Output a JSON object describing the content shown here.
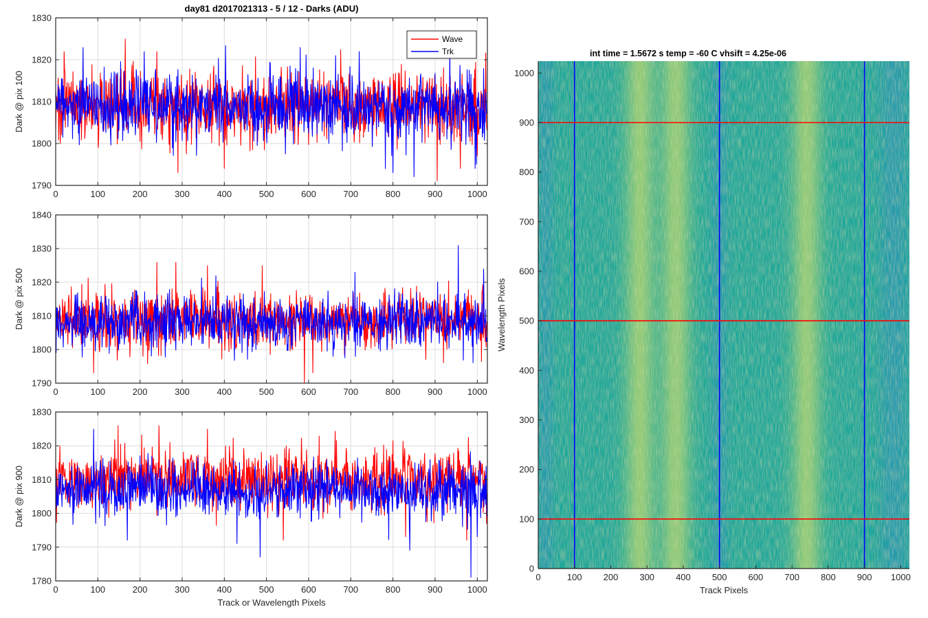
{
  "figure": {
    "suptitle": "day81 d2017021313 - 5 / 12 - Darks (ADU)",
    "colors": {
      "wave": "#ff0000",
      "trk": "#0000ff",
      "axis": "#262626",
      "grid": "#dcdcdc",
      "heat_low": "#2a93b8",
      "heat_mid": "#20a89a",
      "heat_high": "#c7d96c"
    }
  },
  "chart_data": [
    {
      "type": "line",
      "title": "day81 d2017021313 - 5 / 12 - Darks (ADU)",
      "xlabel": "",
      "ylabel": "Dark @ pix 100",
      "xlim": [
        0,
        1024
      ],
      "ylim": [
        1790,
        1830
      ],
      "xticks": [
        0,
        100,
        200,
        300,
        400,
        500,
        600,
        700,
        800,
        900,
        1000
      ],
      "yticks": [
        1790,
        1800,
        1810,
        1820,
        1830
      ],
      "grid": true,
      "legend": {
        "position": "top-right",
        "entries": [
          "Wave",
          "Trk"
        ]
      },
      "series": [
        {
          "name": "Wave",
          "color": "#ff0000",
          "n": 1024,
          "mean": 1809,
          "spread": 4.2,
          "min": 1791,
          "max": 1825,
          "outliers": [
            [
              20,
              1822
            ],
            [
              165,
              1825
            ],
            [
              240,
              1822
            ],
            [
              290,
              1793
            ],
            [
              400,
              1794
            ],
            [
              905,
              1791
            ],
            [
              960,
              1794
            ],
            [
              1000,
              1797
            ]
          ]
        },
        {
          "name": "Trk",
          "color": "#0000ff",
          "n": 1024,
          "mean": 1809,
          "spread": 4.0,
          "min": 1792,
          "max": 1824,
          "outliers": [
            [
              65,
              1823
            ],
            [
              210,
              1822
            ],
            [
              580,
              1823
            ],
            [
              800,
              1793
            ],
            [
              850,
              1792
            ],
            [
              935,
              1823
            ],
            [
              995,
              1794
            ]
          ]
        }
      ]
    },
    {
      "type": "line",
      "title": "",
      "xlabel": "",
      "ylabel": "Dark @ pix 500",
      "xlim": [
        0,
        1024
      ],
      "ylim": [
        1790,
        1840
      ],
      "xticks": [
        0,
        100,
        200,
        300,
        400,
        500,
        600,
        700,
        800,
        900,
        1000
      ],
      "yticks": [
        1790,
        1800,
        1810,
        1820,
        1830,
        1840
      ],
      "grid": true,
      "series": [
        {
          "name": "Wave",
          "color": "#ff0000",
          "n": 1024,
          "mean": 1809,
          "spread": 4.2,
          "min": 1790,
          "max": 1826,
          "outliers": [
            [
              90,
              1793
            ],
            [
              240,
              1826
            ],
            [
              285,
              1826
            ],
            [
              360,
              1825
            ],
            [
              490,
              1825
            ],
            [
              590,
              1790
            ],
            [
              610,
              1793
            ],
            [
              920,
              1796
            ]
          ]
        },
        {
          "name": "Trk",
          "color": "#0000ff",
          "n": 1024,
          "mean": 1808,
          "spread": 4.0,
          "min": 1796,
          "max": 1831,
          "outliers": [
            [
              380,
              1822
            ],
            [
              710,
              1823
            ],
            [
              955,
              1831
            ],
            [
              990,
              1796
            ],
            [
              1015,
              1824
            ]
          ]
        }
      ]
    },
    {
      "type": "line",
      "title": "",
      "xlabel": "Track or Wavelength Pixels",
      "ylabel": "Dark @ pix 900",
      "xlim": [
        0,
        1024
      ],
      "ylim": [
        1780,
        1830
      ],
      "xticks": [
        0,
        100,
        200,
        300,
        400,
        500,
        600,
        700,
        800,
        900,
        1000
      ],
      "yticks": [
        1780,
        1790,
        1800,
        1810,
        1820,
        1830
      ],
      "grid": true,
      "series": [
        {
          "name": "Wave",
          "color": "#ff0000",
          "n": 1024,
          "mean": 1810,
          "spread": 4.5,
          "min": 1792,
          "max": 1826,
          "outliers": [
            [
              10,
              1820
            ],
            [
              245,
              1826
            ],
            [
              360,
              1825
            ],
            [
              540,
              1792
            ],
            [
              830,
              1793
            ],
            [
              975,
              1792
            ]
          ]
        },
        {
          "name": "Trk",
          "color": "#0000ff",
          "n": 1024,
          "mean": 1807,
          "spread": 4.2,
          "min": 1781,
          "max": 1825,
          "outliers": [
            [
              90,
              1825
            ],
            [
              170,
              1792
            ],
            [
              430,
              1791
            ],
            [
              485,
              1787
            ],
            [
              840,
              1789
            ],
            [
              985,
              1781
            ],
            [
              1000,
              1793
            ]
          ]
        }
      ]
    },
    {
      "type": "heatmap",
      "title": "int time = 1.5672 s    temp = -60 C    vhsift = 4.25e-06",
      "xlabel": "Track Pixels",
      "ylabel": "Wavelength Pixels",
      "xlim": [
        0,
        1024
      ],
      "ylim": [
        0,
        1024
      ],
      "xticks": [
        0,
        100,
        200,
        300,
        400,
        500,
        600,
        700,
        800,
        900,
        1000
      ],
      "yticks": [
        0,
        100,
        200,
        300,
        400,
        500,
        600,
        700,
        800,
        900,
        1000
      ],
      "grid": false,
      "colormap": "parula",
      "bright_bands": [
        [
          240,
          320
        ],
        [
          340,
          420
        ],
        [
          700,
          780
        ]
      ],
      "dark_bands": [
        [
          0,
          40
        ],
        [
          480,
          520
        ],
        [
          940,
          1024
        ]
      ],
      "overlays": [
        {
          "orientation": "vertical",
          "value": 100,
          "color": "#0000ff"
        },
        {
          "orientation": "vertical",
          "value": 500,
          "color": "#0000ff"
        },
        {
          "orientation": "vertical",
          "value": 900,
          "color": "#0000ff"
        },
        {
          "orientation": "horizontal",
          "value": 100,
          "color": "#ff0000"
        },
        {
          "orientation": "horizontal",
          "value": 500,
          "color": "#ff0000"
        },
        {
          "orientation": "horizontal",
          "value": 900,
          "color": "#ff0000"
        }
      ]
    }
  ]
}
